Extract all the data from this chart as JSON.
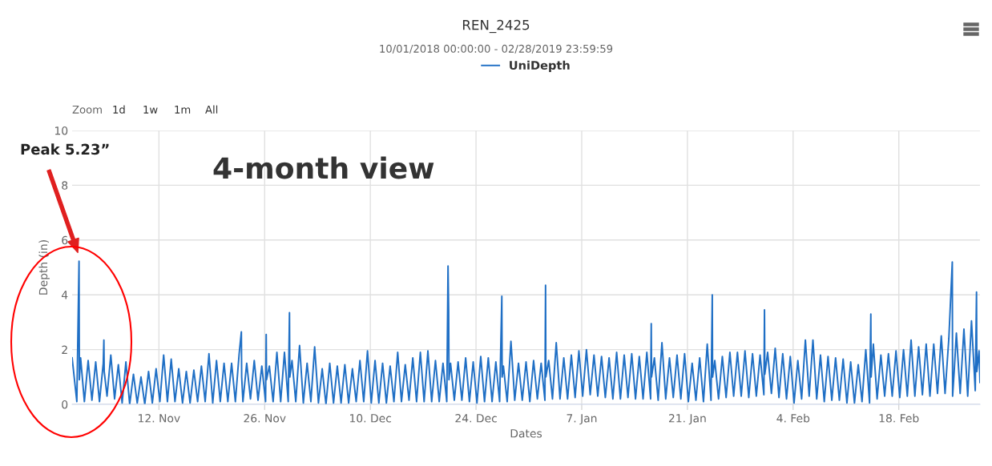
{
  "chart_data": {
    "type": "line",
    "title": "REN_2425",
    "subtitle": "10/01/2018 00:00:00 - 02/28/2019 23:59:59",
    "xlabel": "Dates",
    "ylabel": "Depth (in)",
    "annotations": [
      "Peak 5.23”",
      "4-month view",
      "Zoom",
      "1d",
      "1w",
      "1m",
      "All"
    ],
    "xlim": [
      "2018-10-31T12:00",
      "2019-02-28T18:00"
    ],
    "ylim": [
      0,
      10
    ],
    "xticks": [
      {
        "value": "2018-11-12",
        "label": "12. Nov"
      },
      {
        "value": "2018-11-26",
        "label": "26. Nov"
      },
      {
        "value": "2018-12-10",
        "label": "10. Dec"
      },
      {
        "value": "2018-12-24",
        "label": "24. Dec"
      },
      {
        "value": "2019-01-07",
        "label": "7. Jan"
      },
      {
        "value": "2019-01-21",
        "label": "21. Jan"
      },
      {
        "value": "2019-02-04",
        "label": "4. Feb"
      },
      {
        "value": "2019-02-18",
        "label": "18. Feb"
      }
    ],
    "yticks": [
      0,
      2,
      4,
      6,
      8,
      10
    ],
    "grid": true,
    "legend": "top",
    "marker": "none",
    "line_style": "solid",
    "x": [
      "2018-10-31T12:00",
      "2018-11-01T03:00",
      "2018-11-01T10:00",
      "2018-11-01T11:00",
      "2018-11-01T15:00",
      "2018-11-02T03:00",
      "2018-11-02T15:00",
      "2018-11-03T03:00",
      "2018-11-03T15:00",
      "2018-11-04T03:00",
      "2018-11-04T15:00",
      "2018-11-04T17:00",
      "2018-11-04T18:00",
      "2018-11-05T03:00",
      "2018-11-05T15:00",
      "2018-11-06T03:00",
      "2018-11-06T15:00",
      "2018-11-07T03:00",
      "2018-11-07T15:00",
      "2018-11-08T03:00",
      "2018-11-08T15:00",
      "2018-11-09T03:00",
      "2018-11-09T15:00",
      "2018-11-10T03:00",
      "2018-11-10T15:00",
      "2018-11-11T03:00",
      "2018-11-11T15:00",
      "2018-11-12T03:00",
      "2018-11-12T15:00",
      "2018-11-13T03:00",
      "2018-11-13T15:00",
      "2018-11-14T03:00",
      "2018-11-14T15:00",
      "2018-11-15T03:00",
      "2018-11-15T15:00",
      "2018-11-16T03:00",
      "2018-11-16T15:00",
      "2018-11-17T03:00",
      "2018-11-17T15:00",
      "2018-11-18T03:00",
      "2018-11-18T15:00",
      "2018-11-19T03:00",
      "2018-11-19T15:00",
      "2018-11-20T03:00",
      "2018-11-20T15:00",
      "2018-11-21T03:00",
      "2018-11-21T15:00",
      "2018-11-22T03:00",
      "2018-11-22T15:00",
      "2018-11-22T22:00",
      "2018-11-22T23:00",
      "2018-11-23T03:00",
      "2018-11-23T15:00",
      "2018-11-24T03:00",
      "2018-11-24T15:00",
      "2018-11-25T03:00",
      "2018-11-25T15:00",
      "2018-11-26T03:00",
      "2018-11-26T05:00",
      "2018-11-26T06:00",
      "2018-11-26T15:00",
      "2018-11-27T03:00",
      "2018-11-27T15:00",
      "2018-11-28T03:00",
      "2018-11-28T15:00",
      "2018-11-29T03:00",
      "2018-11-29T07:00",
      "2018-11-29T08:00",
      "2018-11-29T15:00",
      "2018-11-30T03:00",
      "2018-11-30T15:00",
      "2018-12-01T03:00",
      "2018-12-01T15:00",
      "2018-12-02T03:00",
      "2018-12-02T15:00",
      "2018-12-03T03:00",
      "2018-12-03T15:00",
      "2018-12-04T03:00",
      "2018-12-04T15:00",
      "2018-12-05T03:00",
      "2018-12-05T15:00",
      "2018-12-06T03:00",
      "2018-12-06T15:00",
      "2018-12-07T03:00",
      "2018-12-07T15:00",
      "2018-12-08T03:00",
      "2018-12-08T15:00",
      "2018-12-09T03:00",
      "2018-12-09T15:00",
      "2018-12-10T03:00",
      "2018-12-10T15:00",
      "2018-12-11T03:00",
      "2018-12-11T15:00",
      "2018-12-12T03:00",
      "2018-12-12T15:00",
      "2018-12-13T03:00",
      "2018-12-13T15:00",
      "2018-12-14T03:00",
      "2018-12-14T15:00",
      "2018-12-15T03:00",
      "2018-12-15T15:00",
      "2018-12-16T03:00",
      "2018-12-16T15:00",
      "2018-12-17T03:00",
      "2018-12-17T15:00",
      "2018-12-18T03:00",
      "2018-12-18T15:00",
      "2018-12-19T03:00",
      "2018-12-19T15:00",
      "2018-12-20T03:00",
      "2018-12-20T07:00",
      "2018-12-20T09:00",
      "2018-12-20T10:00",
      "2018-12-20T15:00",
      "2018-12-21T03:00",
      "2018-12-21T15:00",
      "2018-12-22T03:00",
      "2018-12-22T15:00",
      "2018-12-23T03:00",
      "2018-12-23T15:00",
      "2018-12-24T03:00",
      "2018-12-24T15:00",
      "2018-12-25T03:00",
      "2018-12-25T15:00",
      "2018-12-26T03:00",
      "2018-12-26T15:00",
      "2018-12-27T03:00",
      "2018-12-27T10:00",
      "2018-12-27T11:00",
      "2018-12-27T15:00",
      "2018-12-28T03:00",
      "2018-12-28T15:00",
      "2018-12-29T03:00",
      "2018-12-29T15:00",
      "2018-12-30T03:00",
      "2018-12-30T15:00",
      "2018-12-31T03:00",
      "2018-12-31T15:00",
      "2019-01-01T03:00",
      "2019-01-01T15:00",
      "2019-01-02T03:00",
      "2019-01-02T05:00",
      "2019-01-02T06:00",
      "2019-01-02T15:00",
      "2019-01-03T03:00",
      "2019-01-03T15:00",
      "2019-01-04T03:00",
      "2019-01-04T15:00",
      "2019-01-05T03:00",
      "2019-01-05T15:00",
      "2019-01-06T03:00",
      "2019-01-06T15:00",
      "2019-01-07T03:00",
      "2019-01-07T15:00",
      "2019-01-08T03:00",
      "2019-01-08T15:00",
      "2019-01-09T03:00",
      "2019-01-09T15:00",
      "2019-01-10T03:00",
      "2019-01-10T15:00",
      "2019-01-11T03:00",
      "2019-01-11T15:00",
      "2019-01-12T03:00",
      "2019-01-12T15:00",
      "2019-01-13T03:00",
      "2019-01-13T15:00",
      "2019-01-14T03:00",
      "2019-01-14T15:00",
      "2019-01-15T03:00",
      "2019-01-15T15:00",
      "2019-01-16T03:00",
      "2019-01-16T05:00",
      "2019-01-16T06:00",
      "2019-01-16T15:00",
      "2019-01-17T03:00",
      "2019-01-17T15:00",
      "2019-01-18T03:00",
      "2019-01-18T15:00",
      "2019-01-19T03:00",
      "2019-01-19T15:00",
      "2019-01-20T03:00",
      "2019-01-20T15:00",
      "2019-01-21T03:00",
      "2019-01-21T15:00",
      "2019-01-22T03:00",
      "2019-01-22T15:00",
      "2019-01-23T03:00",
      "2019-01-23T15:00",
      "2019-01-24T03:00",
      "2019-01-24T07:00",
      "2019-01-24T08:00",
      "2019-01-24T15:00",
      "2019-01-25T03:00",
      "2019-01-25T15:00",
      "2019-01-26T03:00",
      "2019-01-26T15:00",
      "2019-01-27T03:00",
      "2019-01-27T15:00",
      "2019-01-28T03:00",
      "2019-01-28T15:00",
      "2019-01-29T03:00",
      "2019-01-29T15:00",
      "2019-01-30T03:00",
      "2019-01-30T15:00",
      "2019-01-31T03:00",
      "2019-01-31T05:00",
      "2019-01-31T06:00",
      "2019-01-31T15:00",
      "2019-02-01T03:00",
      "2019-02-01T15:00",
      "2019-02-02T03:00",
      "2019-02-02T15:00",
      "2019-02-03T03:00",
      "2019-02-03T15:00",
      "2019-02-04T03:00",
      "2019-02-04T15:00",
      "2019-02-05T03:00",
      "2019-02-05T15:00",
      "2019-02-06T03:00",
      "2019-02-06T15:00",
      "2019-02-07T03:00",
      "2019-02-07T15:00",
      "2019-02-08T03:00",
      "2019-02-08T15:00",
      "2019-02-09T03:00",
      "2019-02-09T15:00",
      "2019-02-10T03:00",
      "2019-02-10T15:00",
      "2019-02-11T03:00",
      "2019-02-11T15:00",
      "2019-02-12T03:00",
      "2019-02-12T15:00",
      "2019-02-13T03:00",
      "2019-02-13T15:00",
      "2019-02-14T03:00",
      "2019-02-14T07:00",
      "2019-02-14T08:00",
      "2019-02-14T15:00",
      "2019-02-15T03:00",
      "2019-02-15T15:00",
      "2019-02-16T03:00",
      "2019-02-16T15:00",
      "2019-02-17T03:00",
      "2019-02-17T15:00",
      "2019-02-18T03:00",
      "2019-02-18T15:00",
      "2019-02-19T03:00",
      "2019-02-19T15:00",
      "2019-02-20T03:00",
      "2019-02-20T15:00",
      "2019-02-21T03:00",
      "2019-02-21T15:00",
      "2019-02-22T03:00",
      "2019-02-22T15:00",
      "2019-02-23T03:00",
      "2019-02-23T15:00",
      "2019-02-24T03:00",
      "2019-02-24T15:00",
      "2019-02-25T02:00",
      "2019-02-25T03:00",
      "2019-02-25T08:00",
      "2019-02-25T15:00",
      "2019-02-26T03:00",
      "2019-02-26T15:00",
      "2019-02-27T03:00",
      "2019-02-27T15:00",
      "2019-02-28T03:00",
      "2019-02-28T07:00",
      "2019-02-28T08:00",
      "2019-02-28T15:00",
      "2019-02-28T18:00"
    ],
    "series": [
      {
        "name": "UniDepth",
        "color": "#1f6fc5",
        "values": [
          1.7,
          0.1,
          5.23,
          0.9,
          1.7,
          0.1,
          1.6,
          0.15,
          1.55,
          0.1,
          1.5,
          2.35,
          1.2,
          0.3,
          1.8,
          0.2,
          1.45,
          0.05,
          1.55,
          0.0,
          1.1,
          0.05,
          1.0,
          0.0,
          1.2,
          0.05,
          1.3,
          0.1,
          1.8,
          0.1,
          1.65,
          0.1,
          1.3,
          0.05,
          1.2,
          0.05,
          1.25,
          0.1,
          1.4,
          0.1,
          1.85,
          0.05,
          1.6,
          0.1,
          1.5,
          0.1,
          1.5,
          0.1,
          1.85,
          2.65,
          1.0,
          0.1,
          1.5,
          0.2,
          1.6,
          0.15,
          1.4,
          0.1,
          2.55,
          0.9,
          1.4,
          0.1,
          1.9,
          0.1,
          1.9,
          0.1,
          3.35,
          1.0,
          1.6,
          0.1,
          2.15,
          0.05,
          1.5,
          0.1,
          2.1,
          0.05,
          1.3,
          0.0,
          1.5,
          0.05,
          1.4,
          0.05,
          1.45,
          0.05,
          1.3,
          0.1,
          1.6,
          0.1,
          1.95,
          0.05,
          1.6,
          0.05,
          1.5,
          0.05,
          1.4,
          0.1,
          1.9,
          0.1,
          1.45,
          0.15,
          1.7,
          0.1,
          1.9,
          0.1,
          1.95,
          0.1,
          1.6,
          0.1,
          1.5,
          0.1,
          5.05,
          3.4,
          0.9,
          1.5,
          0.15,
          1.55,
          0.15,
          1.7,
          0.1,
          1.55,
          0.05,
          1.75,
          0.1,
          1.7,
          0.1,
          1.55,
          0.1,
          3.95,
          1.0,
          1.4,
          0.1,
          2.3,
          0.15,
          1.5,
          0.15,
          1.55,
          0.1,
          1.6,
          0.2,
          1.5,
          0.15,
          4.35,
          1.0,
          1.6,
          0.2,
          2.25,
          0.2,
          1.7,
          0.2,
          1.8,
          0.25,
          1.95,
          0.3,
          2.0,
          0.35,
          1.8,
          0.3,
          1.75,
          0.25,
          1.7,
          0.2,
          1.9,
          0.2,
          1.8,
          0.25,
          1.85,
          0.2,
          1.75,
          0.2,
          1.9,
          0.2,
          2.95,
          1.0,
          1.7,
          0.15,
          2.25,
          0.2,
          1.7,
          0.25,
          1.8,
          0.2,
          1.85,
          0.1,
          1.5,
          0.15,
          1.7,
          0.1,
          2.2,
          0.15,
          4.0,
          1.0,
          1.6,
          0.2,
          1.75,
          0.25,
          1.9,
          0.3,
          1.9,
          0.3,
          1.95,
          0.25,
          1.85,
          0.3,
          1.8,
          0.35,
          3.45,
          1.1,
          1.9,
          0.4,
          2.05,
          0.25,
          1.85,
          0.2,
          1.75,
          0.05,
          1.6,
          0.2,
          2.35,
          0.3,
          2.35,
          0.2,
          1.8,
          0.1,
          1.75,
          0.15,
          1.7,
          0.15,
          1.65,
          0.05,
          1.55,
          0.05,
          1.45,
          0.1,
          2.0,
          0.05,
          3.3,
          1.0,
          2.2,
          0.2,
          1.8,
          0.3,
          1.85,
          0.3,
          1.95,
          0.25,
          2.0,
          0.3,
          2.35,
          0.3,
          2.1,
          0.35,
          2.2,
          0.3,
          2.2,
          0.4,
          2.5,
          0.4,
          2.4,
          5.2,
          0.3,
          1.2,
          2.6,
          0.4,
          2.75,
          0.3,
          3.05,
          0.5,
          4.1,
          1.2,
          1.95,
          0.8
        ]
      }
    ]
  }
}
